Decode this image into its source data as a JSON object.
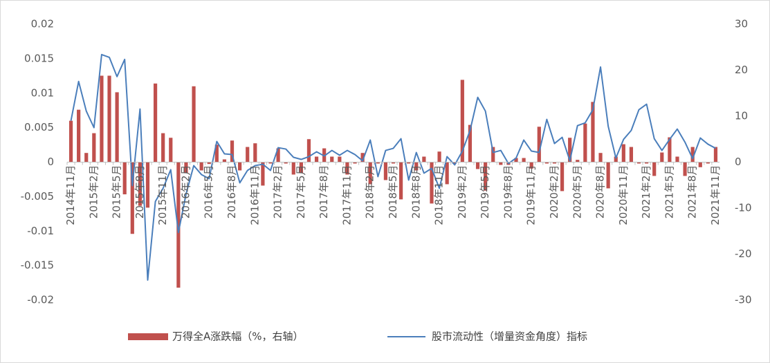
{
  "chart_data": {
    "type": "bar",
    "categories": [
      "2014年11月",
      null,
      null,
      "2015年2月",
      null,
      null,
      "2015年5月",
      null,
      null,
      "2015年8月",
      null,
      null,
      "2015年11月",
      null,
      null,
      "2016年2月",
      null,
      null,
      "2016年5月",
      null,
      null,
      "2016年8月",
      null,
      null,
      "2016年11月",
      null,
      null,
      "2017年2月",
      null,
      null,
      "2017年5月",
      null,
      null,
      "2017年8月",
      null,
      null,
      "2017年11月",
      null,
      null,
      "2018年2月",
      null,
      null,
      "2018年5月",
      null,
      null,
      "2018年8月",
      null,
      null,
      "2018年11月",
      null,
      null,
      "2019年2月",
      null,
      null,
      "2019年5月",
      null,
      null,
      "2019年8月",
      null,
      null,
      "2019年11月",
      null,
      null,
      "2020年2月",
      null,
      null,
      "2020年5月",
      null,
      null,
      "2020年8月",
      null,
      null,
      "2020年11月",
      null,
      null,
      "2021年2月",
      null,
      null,
      "2021年5月",
      null,
      null,
      "2021年8月",
      null,
      null,
      "2021年11月"
    ],
    "series": [
      {
        "name": "万得全A涨跌幅（%，右轴）",
        "type": "bar",
        "axis": "y2",
        "color": "#c0504d",
        "values": [
          9.0,
          11.4,
          2.0,
          6.3,
          18.8,
          18.8,
          15.2,
          -7.0,
          -15.6,
          -9.5,
          -9.9,
          17.1,
          6.3,
          5.3,
          -27.3,
          -2.4,
          16.5,
          -1.8,
          -0.4,
          3.8,
          0.6,
          4.7,
          -1.8,
          3.3,
          4.1,
          -5.1,
          -0.3,
          3.0,
          -0.3,
          -2.7,
          -2.4,
          5.0,
          1.2,
          3.0,
          1.2,
          1.2,
          -2.7,
          -0.3,
          2.0,
          -4.8,
          -0.3,
          -3.9,
          -0.3,
          -8.1,
          -0.3,
          -1.8,
          1.2,
          -9.0,
          2.3,
          -4.8,
          -0.3,
          17.9,
          8.1,
          -1.5,
          -6.2,
          3.3,
          -0.6,
          -0.6,
          0.9,
          0.9,
          -1.4,
          7.7,
          -0.3,
          -0.3,
          -6.3,
          5.3,
          0.5,
          8.4,
          13.1,
          2.0,
          -5.7,
          1.2,
          3.9,
          3.3,
          -0.3,
          -0.3,
          -3.0,
          2.1,
          5.4,
          1.2,
          -3.0,
          3.3,
          -1.1,
          -0.3,
          3.3
        ]
      },
      {
        "name": "股市流动性（增量资金角度）指标",
        "type": "line",
        "color": "#4a7ebb",
        "values": [
          0.006,
          0.0117,
          0.0074,
          0.005,
          0.0156,
          0.0152,
          0.0124,
          0.0149,
          -0.0034,
          0.0077,
          -0.0171,
          -0.0057,
          -0.0038,
          -0.0011,
          -0.0102,
          -0.0046,
          -0.0005,
          -0.0018,
          -0.0024,
          0.003,
          0.0012,
          0.0011,
          -0.003,
          -0.0012,
          -0.0005,
          -0.0003,
          -0.0012,
          0.0021,
          0.0019,
          0.0007,
          0.0004,
          0.0008,
          0.0015,
          0.0009,
          0.0017,
          0.001,
          0.0017,
          0.0011,
          0.0002,
          0.0032,
          -0.0021,
          0.0017,
          0.002,
          0.0034,
          -0.0026,
          0.0014,
          -0.0016,
          -0.0009,
          -0.0038,
          0.0008,
          -0.0004,
          0.0016,
          0.0046,
          0.0094,
          0.0074,
          0.0014,
          0.0017,
          -0.0002,
          0.0006,
          0.0032,
          0.0016,
          0.0014,
          0.0062,
          0.0027,
          0.0036,
          0.0002,
          0.0053,
          0.0057,
          0.0076,
          0.0138,
          0.0052,
          0.0006,
          0.0033,
          0.0046,
          0.0076,
          0.0084,
          0.0034,
          0.0017,
          0.0033,
          0.0048,
          0.0029,
          0.0005,
          0.0035,
          0.0026,
          0.002
        ]
      }
    ],
    "ylim": [
      -0.02,
      0.02
    ],
    "yticks": [
      -0.02,
      -0.015,
      -0.01,
      -0.005,
      0,
      0.005,
      0.01,
      0.015,
      0.02
    ],
    "y2lim": [
      -30,
      30
    ],
    "y2ticks": [
      -30,
      -20,
      -10,
      0,
      10,
      20,
      30
    ],
    "grid": false,
    "legend": "bottom"
  }
}
